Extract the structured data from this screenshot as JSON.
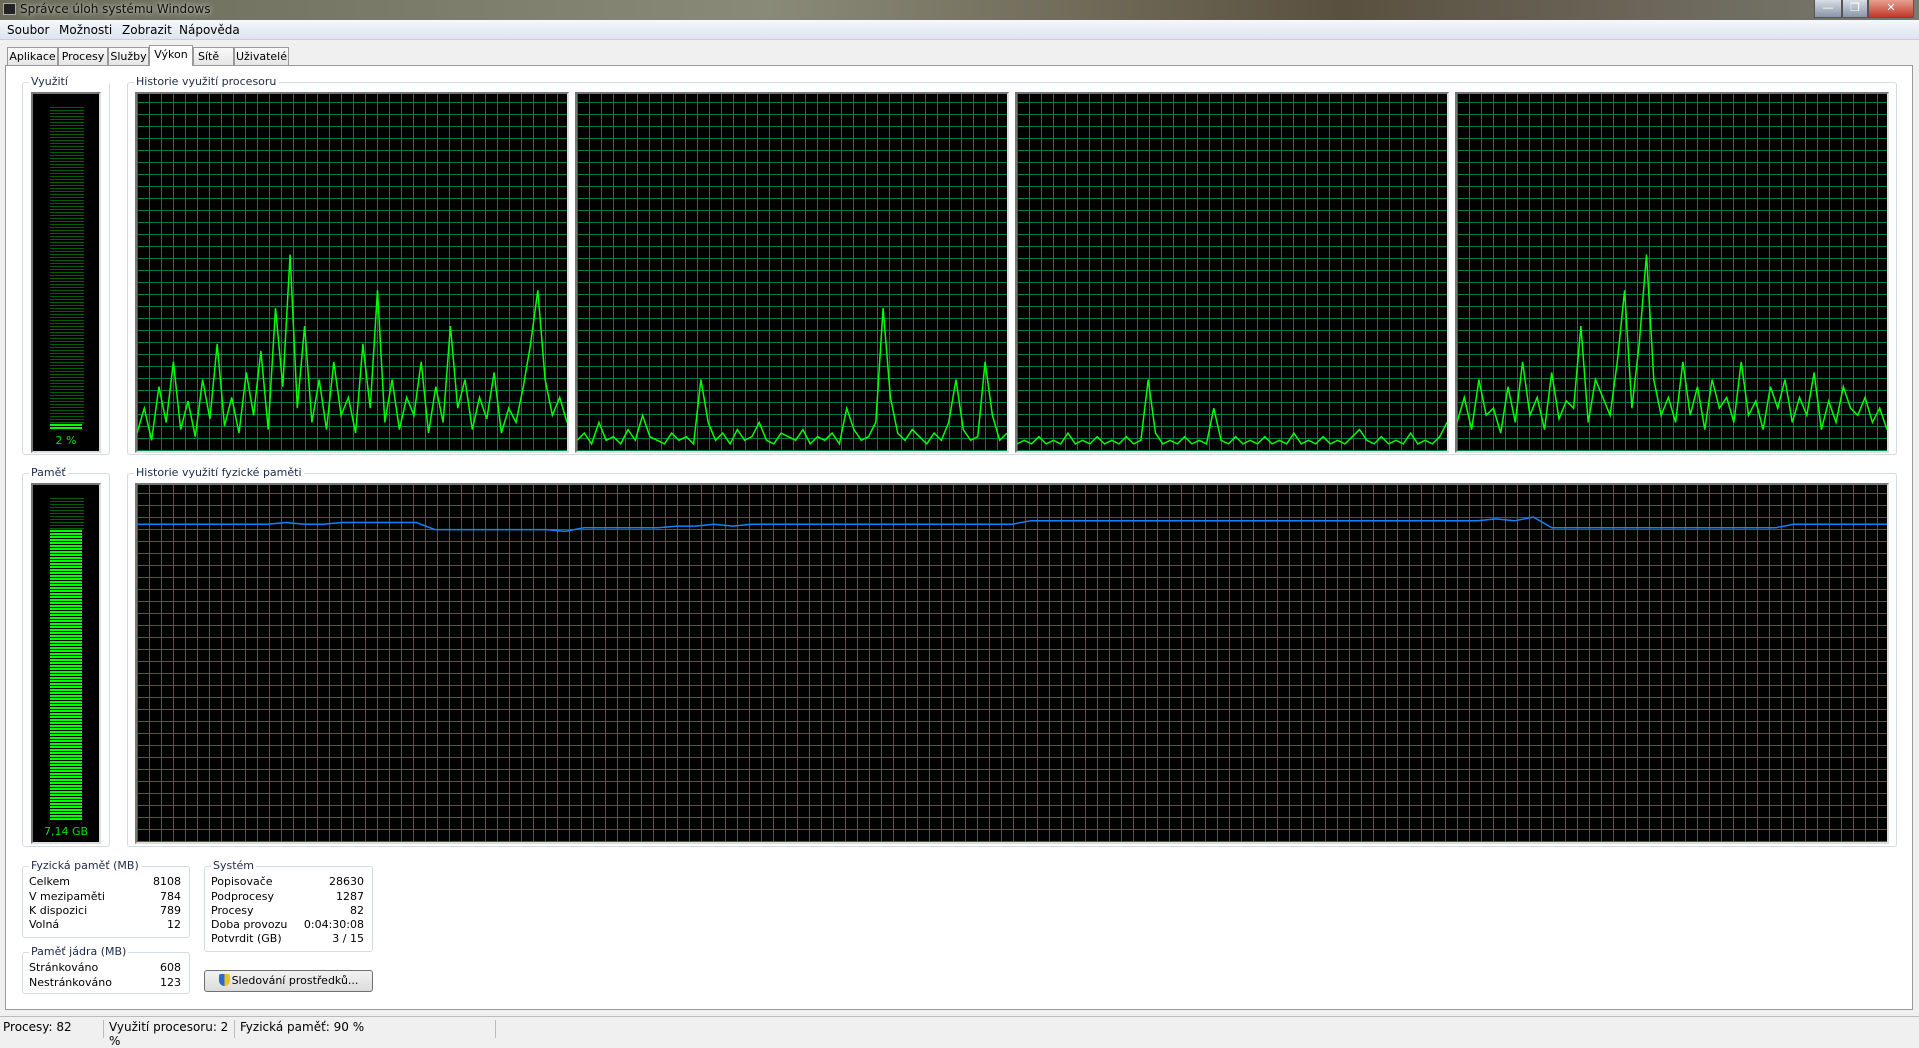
{
  "window": {
    "title": "Správce úloh systému Windows",
    "minimize": "—",
    "restore": "❐",
    "close": "✕"
  },
  "menu": [
    "Soubor",
    "Možnosti",
    "Zobrazit",
    "Nápověda"
  ],
  "tabs": [
    "Aplikace",
    "Procesy",
    "Služby",
    "Výkon",
    "Sítě",
    "Uživatelé"
  ],
  "active_tab": "Výkon",
  "cpu": {
    "label": "Využití procesoru",
    "value": "2 %",
    "percent": 2,
    "history_label": "Historie využití procesoru",
    "cores": [
      [
        5,
        12,
        3,
        18,
        8,
        25,
        6,
        14,
        4,
        20,
        9,
        30,
        7,
        15,
        5,
        22,
        10,
        28,
        6,
        40,
        18,
        55,
        12,
        35,
        8,
        20,
        6,
        25,
        10,
        15,
        5,
        30,
        12,
        45,
        8,
        20,
        6,
        15,
        10,
        25,
        5,
        18,
        8,
        35,
        12,
        20,
        6,
        15,
        9,
        22,
        5,
        12,
        8,
        18,
        30,
        45,
        20,
        10,
        15,
        8
      ],
      [
        3,
        5,
        2,
        8,
        3,
        4,
        2,
        6,
        3,
        10,
        4,
        3,
        2,
        5,
        3,
        4,
        2,
        20,
        8,
        3,
        5,
        2,
        6,
        3,
        4,
        8,
        3,
        2,
        5,
        4,
        3,
        6,
        2,
        4,
        3,
        5,
        2,
        12,
        6,
        3,
        4,
        8,
        40,
        15,
        5,
        3,
        6,
        4,
        2,
        5,
        3,
        8,
        20,
        6,
        3,
        4,
        25,
        10,
        3,
        5
      ],
      [
        2,
        3,
        2,
        4,
        2,
        3,
        2,
        5,
        2,
        3,
        2,
        4,
        2,
        3,
        2,
        4,
        2,
        3,
        20,
        5,
        2,
        3,
        2,
        4,
        2,
        3,
        2,
        12,
        3,
        2,
        4,
        2,
        3,
        2,
        4,
        2,
        3,
        2,
        5,
        2,
        3,
        2,
        4,
        2,
        3,
        2,
        4,
        6,
        3,
        2,
        4,
        2,
        3,
        2,
        5,
        2,
        3,
        2,
        4,
        8
      ],
      [
        8,
        15,
        6,
        20,
        10,
        12,
        5,
        18,
        8,
        25,
        10,
        15,
        6,
        22,
        9,
        14,
        12,
        35,
        8,
        20,
        15,
        10,
        25,
        45,
        12,
        30,
        55,
        20,
        10,
        15,
        8,
        25,
        10,
        18,
        6,
        20,
        12,
        15,
        8,
        25,
        10,
        14,
        6,
        18,
        12,
        20,
        8,
        15,
        10,
        22,
        6,
        14,
        8,
        18,
        12,
        10,
        15,
        8,
        12,
        6
      ]
    ]
  },
  "memory": {
    "label": "Paměť",
    "value": "7,14 GB",
    "percent": 90,
    "history_label": "Historie využití fyzické paměti",
    "history": [
      89,
      89,
      89,
      89,
      89,
      89,
      89,
      89,
      89.5,
      89,
      89,
      89.5,
      89.5,
      89.5,
      89.5,
      89.5,
      87.5,
      87.5,
      87.5,
      87.5,
      87.5,
      87.5,
      87.5,
      87,
      88,
      88,
      88,
      88,
      88,
      88.5,
      88.5,
      89,
      88.5,
      89,
      89,
      89,
      89,
      89,
      89,
      89,
      89,
      89,
      89,
      89,
      89,
      89,
      89,
      89,
      90,
      90,
      90,
      90,
      90,
      90,
      90,
      90,
      90,
      90,
      90,
      90,
      90,
      90,
      90,
      90,
      90,
      90,
      90,
      90,
      90,
      90,
      90,
      90,
      90,
      90.5,
      90,
      91,
      88,
      88,
      88,
      88,
      88,
      88,
      88,
      88,
      88,
      88,
      88,
      88,
      88,
      89,
      89,
      89,
      89,
      89,
      89
    ]
  },
  "physical_memory": {
    "label": "Fyzická paměť (MB)",
    "rows": [
      {
        "k": "Celkem",
        "v": "8108"
      },
      {
        "k": "V mezipaměti",
        "v": "784"
      },
      {
        "k": "K dispozici",
        "v": "789"
      },
      {
        "k": "Volná",
        "v": "12"
      }
    ]
  },
  "kernel_memory": {
    "label": "Paměť jádra (MB)",
    "rows": [
      {
        "k": "Stránkováno",
        "v": "608"
      },
      {
        "k": "Nestránkováno",
        "v": "123"
      }
    ]
  },
  "system": {
    "label": "Systém",
    "rows": [
      {
        "k": "Popisovače",
        "v": "28630"
      },
      {
        "k": "Podprocesy",
        "v": "1287"
      },
      {
        "k": "Procesy",
        "v": "82"
      },
      {
        "k": "Doba provozu",
        "v": "0:04:30:08"
      },
      {
        "k": "Potvrdit (GB)",
        "v": "3 / 15"
      }
    ]
  },
  "resource_monitor_button": "Sledování prostředků...",
  "status": {
    "processes": "Procesy: 82",
    "cpu": "Využití procesoru: 2 %",
    "memory": "Fyzická paměť: 90 %"
  },
  "colors": {
    "cpu_line": "#00ff00",
    "memory_line": "#0a84ff",
    "grid": "#008040",
    "meter_on": "#00ff00"
  }
}
